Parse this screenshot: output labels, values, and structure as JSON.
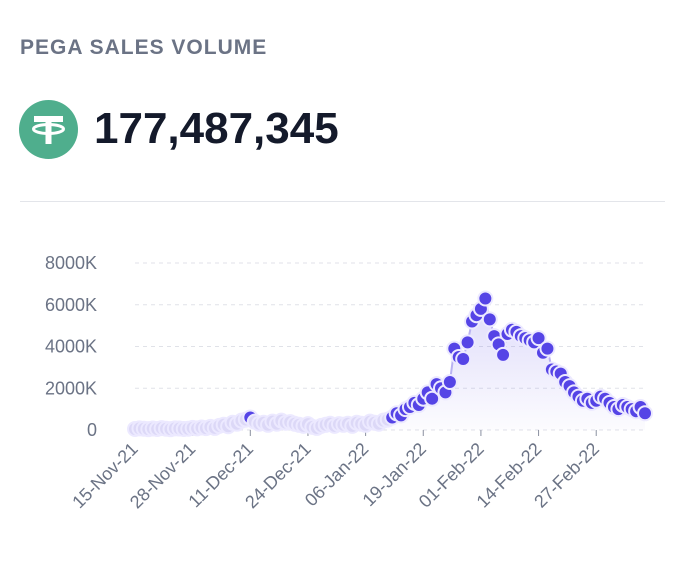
{
  "header": {
    "title": "PEGA SALES VOLUME",
    "total": "177,487,345"
  },
  "chart_data": {
    "type": "line",
    "color": "#5544e6",
    "grid": true,
    "x": [
      "2021-11-15",
      "2021-11-16",
      "2021-11-17",
      "2021-11-18",
      "2021-11-19",
      "2021-11-20",
      "2021-11-21",
      "2021-11-22",
      "2021-11-23",
      "2021-11-24",
      "2021-11-25",
      "2021-11-26",
      "2021-11-27",
      "2021-11-28",
      "2021-11-29",
      "2021-11-30",
      "2021-12-01",
      "2021-12-02",
      "2021-12-03",
      "2021-12-04",
      "2021-12-05",
      "2021-12-06",
      "2021-12-07",
      "2021-12-08",
      "2021-12-09",
      "2021-12-10",
      "2021-12-11",
      "2021-12-12",
      "2021-12-13",
      "2021-12-14",
      "2021-12-15",
      "2021-12-16",
      "2021-12-17",
      "2021-12-18",
      "2021-12-19",
      "2021-12-20",
      "2021-12-21",
      "2021-12-22",
      "2021-12-23",
      "2021-12-24",
      "2021-12-25",
      "2021-12-26",
      "2021-12-27",
      "2021-12-28",
      "2021-12-29",
      "2021-12-30",
      "2021-12-31",
      "2022-01-01",
      "2022-01-02",
      "2022-01-03",
      "2022-01-04",
      "2022-01-05",
      "2022-01-06",
      "2022-01-07",
      "2022-01-08",
      "2022-01-09",
      "2022-01-10",
      "2022-01-11",
      "2022-01-12",
      "2022-01-13",
      "2022-01-14",
      "2022-01-15",
      "2022-01-16",
      "2022-01-17",
      "2022-01-18",
      "2022-01-19",
      "2022-01-20",
      "2022-01-21",
      "2022-01-22",
      "2022-01-23",
      "2022-01-24",
      "2022-01-25",
      "2022-01-26",
      "2022-01-27",
      "2022-01-28",
      "2022-01-29",
      "2022-01-30",
      "2022-01-31",
      "2022-02-01",
      "2022-02-02",
      "2022-02-03",
      "2022-02-04",
      "2022-02-05",
      "2022-02-06",
      "2022-02-07",
      "2022-02-08",
      "2022-02-09",
      "2022-02-10",
      "2022-02-11",
      "2022-02-12",
      "2022-02-13",
      "2022-02-14",
      "2022-02-15",
      "2022-02-16",
      "2022-02-17",
      "2022-02-18",
      "2022-02-19",
      "2022-02-20",
      "2022-02-21",
      "2022-02-22",
      "2022-02-23",
      "2022-02-24",
      "2022-02-25",
      "2022-02-26",
      "2022-02-27",
      "2022-02-28",
      "2022-03-01",
      "2022-03-02",
      "2022-03-03",
      "2022-03-04",
      "2022-03-05",
      "2022-03-06",
      "2022-03-07",
      "2022-03-08",
      "2022-03-09",
      "2022-03-10"
    ],
    "values": [
      50000,
      80000,
      60000,
      40000,
      70000,
      50000,
      90000,
      60000,
      40000,
      80000,
      70000,
      50000,
      60000,
      100000,
      80000,
      120000,
      90000,
      150000,
      100000,
      200000,
      250000,
      180000,
      350000,
      300000,
      450000,
      500000,
      600000,
      400000,
      300000,
      350000,
      250000,
      400000,
      300000,
      450000,
      350000,
      380000,
      300000,
      250000,
      200000,
      280000,
      150000,
      100000,
      200000,
      250000,
      300000,
      200000,
      280000,
      250000,
      300000,
      200000,
      350000,
      300000,
      250000,
      400000,
      350000,
      300000,
      450000,
      500000,
      600000,
      800000,
      700000,
      1000000,
      1100000,
      1300000,
      1200000,
      1500000,
      1800000,
      1500000,
      2200000,
      2000000,
      1800000,
      2300000,
      3900000,
      3500000,
      3400000,
      4200000,
      5200000,
      5500000,
      5800000,
      6300000,
      5300000,
      4500000,
      4100000,
      3600000,
      4600000,
      4800000,
      4700000,
      4500000,
      4400000,
      4300000,
      4200000,
      4400000,
      3700000,
      3900000,
      2900000,
      2800000,
      2700000,
      2300000,
      2100000,
      1800000,
      1600000,
      1400000,
      1500000,
      1300000,
      1400000,
      1600000,
      1500000,
      1300000,
      1100000,
      1000000,
      1200000,
      1100000,
      1000000,
      900000,
      1100000,
      800000
    ],
    "xlim": [
      "2021-11-15",
      "2022-03-10"
    ],
    "xticks": [
      {
        "value": "2021-11-15",
        "label": "15-Nov-21"
      },
      {
        "value": "2021-11-28",
        "label": "28-Nov-21"
      },
      {
        "value": "2021-12-11",
        "label": "11-Dec-21"
      },
      {
        "value": "2021-12-24",
        "label": "24-Dec-21"
      },
      {
        "value": "2022-01-06",
        "label": "06-Jan-22"
      },
      {
        "value": "2022-01-19",
        "label": "19-Jan-22"
      },
      {
        "value": "2022-02-01",
        "label": "01-Feb-22"
      },
      {
        "value": "2022-02-14",
        "label": "14-Feb-22"
      },
      {
        "value": "2022-02-27",
        "label": "27-Feb-22"
      }
    ],
    "ylim": [
      0,
      8000000
    ],
    "yticks": [
      0,
      {
        "value": 2000000,
        "label": "2000K"
      },
      {
        "value": 4000000,
        "label": "4000K"
      },
      {
        "value": 6000000,
        "label": "6000K"
      },
      {
        "value": 8000000,
        "label": "8000K"
      }
    ]
  }
}
